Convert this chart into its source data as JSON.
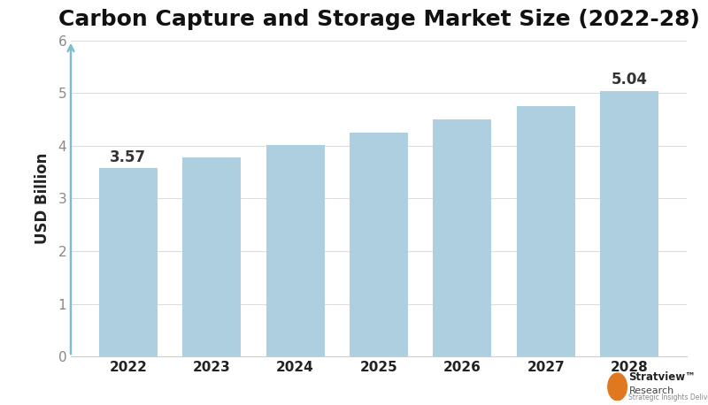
{
  "title": "Carbon Capture and Storage Market Size (2022-28)",
  "categories": [
    "2022",
    "2023",
    "2024",
    "2025",
    "2026",
    "2027",
    "2028"
  ],
  "values": [
    3.57,
    3.78,
    4.01,
    4.25,
    4.5,
    4.75,
    5.04
  ],
  "bar_color": "#aecfe0",
  "ylabel": "USD Billion",
  "ylim": [
    0,
    6
  ],
  "yticks": [
    0,
    1,
    2,
    3,
    4,
    5,
    6
  ],
  "annotated_indices": [
    0,
    6
  ],
  "annotated_labels": [
    "3.57",
    "5.04"
  ],
  "title_fontsize": 18,
  "axis_label_fontsize": 12,
  "tick_fontsize": 11,
  "annotation_fontsize": 12,
  "background_color": "#ffffff",
  "grid_color": "#dddddd",
  "bar_width": 0.7,
  "arrow_color": "#7fbcd2"
}
